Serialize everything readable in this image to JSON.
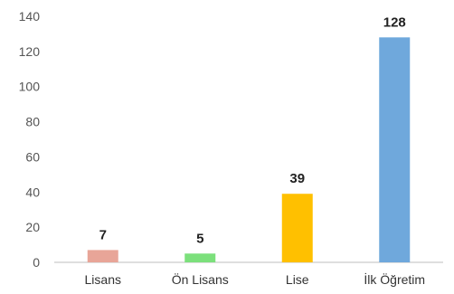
{
  "chart_data": {
    "type": "bar",
    "title": "",
    "xlabel": "",
    "ylabel": "",
    "categories": [
      "Lisans",
      "Ön Lisans",
      "Lise",
      "İlk Öğretim"
    ],
    "values": [
      7,
      5,
      39,
      128
    ],
    "data_labels": [
      "7",
      "5",
      "39",
      "128"
    ],
    "bar_colors": [
      "#e8a598",
      "#7ce07c",
      "#ffc000",
      "#6fa8dc"
    ],
    "ylim": [
      0,
      140
    ],
    "yticks": [
      0,
      20,
      40,
      60,
      80,
      100,
      120,
      140
    ],
    "ytick_labels": [
      "0",
      "20",
      "40",
      "60",
      "80",
      "100",
      "120",
      "140"
    ],
    "grid": false,
    "legend": "none",
    "axis_color": "#bfbfbf"
  }
}
